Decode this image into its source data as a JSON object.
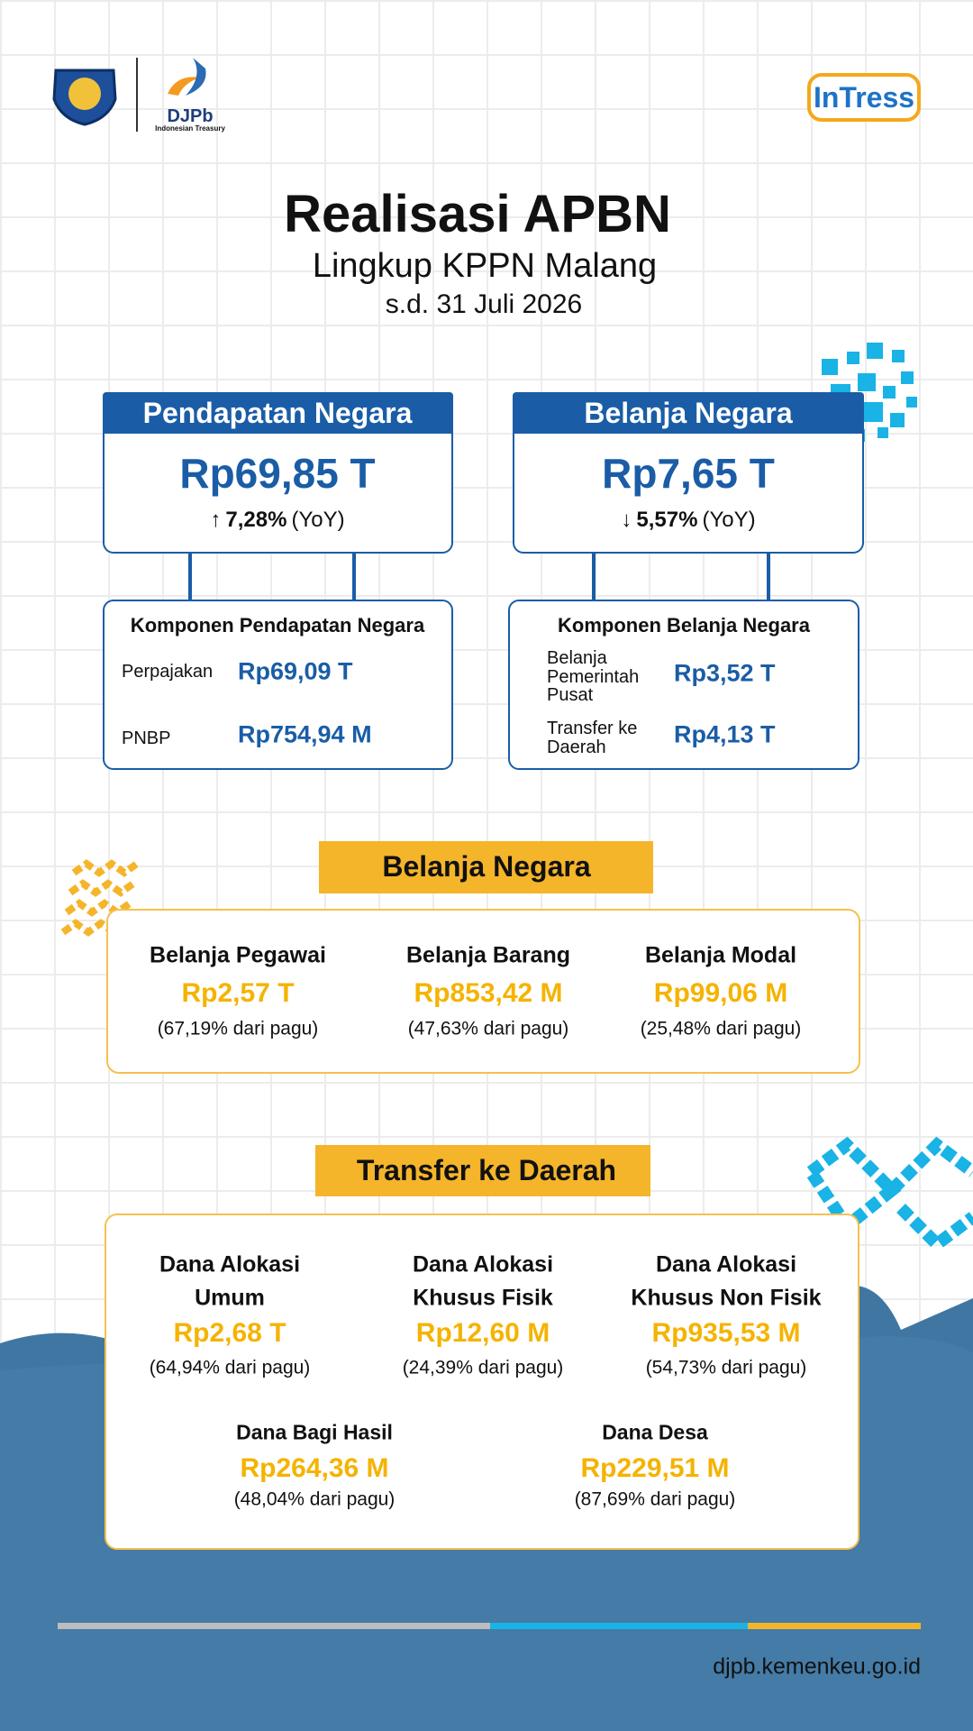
{
  "header": {
    "logo_text": "DJPb",
    "logo_subtext": "Indonesian Treasury",
    "brand": "InTress"
  },
  "title": "Realisasi APBN",
  "subtitle": "Lingkup KPPN Malang",
  "date": "s.d. 31 Juli 2026",
  "summary": [
    {
      "label": "Pendapatan Negara",
      "value": "Rp69,85 T",
      "arrow": "↑",
      "change": "7,28%",
      "period": "(YoY)"
    },
    {
      "label": "Belanja Negara",
      "value": "Rp7,65 T",
      "arrow": "↓",
      "change": "5,57%",
      "period": "(YoY)"
    }
  ],
  "components": [
    {
      "title": "Komponen Pendapatan Negara",
      "items": [
        {
          "label": [
            "Perpajakan"
          ],
          "value": "Rp69,09 T"
        },
        {
          "label": [
            "PNBP"
          ],
          "value": "Rp754,94 M"
        }
      ]
    },
    {
      "title": "Komponen Belanja Negara",
      "items": [
        {
          "label": [
            "Belanja",
            "Pemerintah",
            "Pusat"
          ],
          "value": "Rp3,52 T"
        },
        {
          "label": [
            "Transfer ke",
            "Daerah"
          ],
          "value": "Rp4,13 T"
        }
      ]
    }
  ],
  "belanja": {
    "title": "Belanja Negara",
    "items": [
      {
        "name": [
          "Belanja Pegawai"
        ],
        "value": "Rp2,57 T",
        "note": "(67,19% dari pagu)"
      },
      {
        "name": [
          "Belanja Barang"
        ],
        "value": "Rp853,42 M",
        "note": "(47,63% dari pagu)"
      },
      {
        "name": [
          "Belanja Modal"
        ],
        "value": "Rp99,06 M",
        "note": "(25,48% dari pagu)"
      }
    ]
  },
  "transfer": {
    "title": "Transfer ke Daerah",
    "items": [
      {
        "name": [
          "Dana Alokasi",
          "Umum"
        ],
        "value": "Rp2,68 T",
        "note": "(64,94% dari pagu)"
      },
      {
        "name": [
          "Dana Alokasi",
          "Khusus Fisik"
        ],
        "value": "Rp12,60 M",
        "note": "(24,39% dari pagu)"
      },
      {
        "name": [
          "Dana Alokasi",
          "Khusus Non Fisik"
        ],
        "value": "Rp935,53 M",
        "note": "(54,73% dari pagu)"
      },
      {
        "name": [
          "Dana Bagi Hasil"
        ],
        "value": "Rp264,36 M",
        "note": "(48,04% dari pagu)"
      },
      {
        "name": [
          "Dana Desa"
        ],
        "value": "Rp229,51 M",
        "note": "(87,69% dari pagu)"
      }
    ]
  },
  "footer": {
    "url": "djpb.kemenkeu.go.id"
  }
}
